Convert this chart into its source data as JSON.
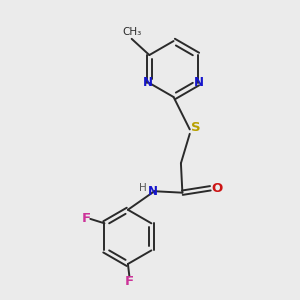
{
  "background_color": "#ebebeb",
  "bond_color": "#2a2a2a",
  "N_color": "#1414cc",
  "S_color": "#b8a000",
  "O_color": "#cc1414",
  "F_color": "#cc3399",
  "figsize": [
    3.0,
    3.0
  ],
  "dpi": 100,
  "xlim": [
    0,
    10
  ],
  "ylim": [
    0,
    10
  ]
}
